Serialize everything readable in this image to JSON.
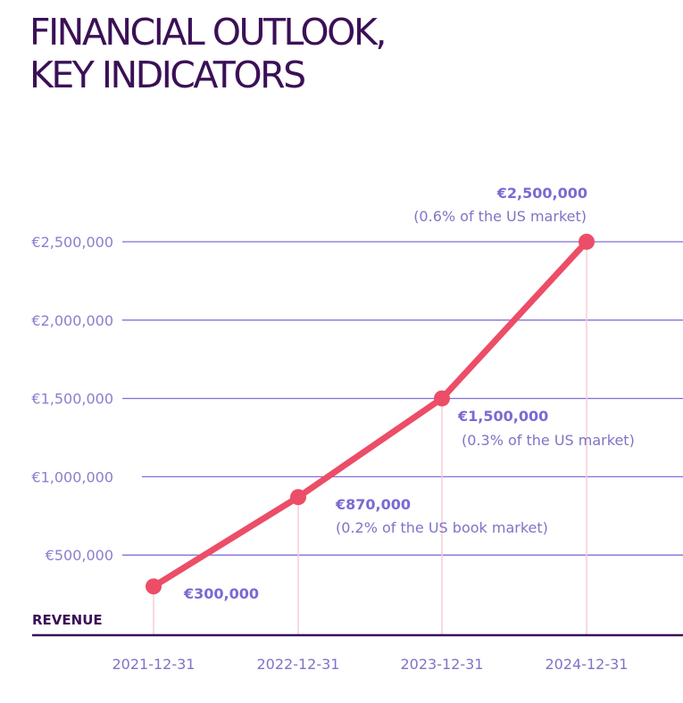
{
  "title_lines": [
    "FINANCIAL OUTLOOK,",
    "KEY INDICATORS"
  ],
  "colors": {
    "title": "#3b1056",
    "line": "#ec4d67",
    "grid": "#8070d8",
    "axis": "#3b1056",
    "dropline": "#f7cdd5",
    "label": "#7a6ad2"
  },
  "chart_data": {
    "type": "line",
    "title": "",
    "xlabel": "",
    "ylabel": "REVENUE",
    "x": [
      "2021-12-31",
      "2022-12-31",
      "2023-12-31",
      "2024-12-31"
    ],
    "series": [
      {
        "values": [
          300000,
          870000,
          1500000,
          2500000
        ]
      }
    ],
    "yticks": [
      500000,
      1000000,
      1500000,
      2000000,
      2500000
    ],
    "ytick_labels": [
      "€500,000",
      "€1,000,000",
      "€1,500,000",
      "€2,000,000",
      "€2,500,000"
    ],
    "ylim": [
      0,
      2500000
    ],
    "grid": true,
    "point_labels": [
      "€300,000",
      "€870,000",
      "€1,500,000",
      "€2,500,000"
    ],
    "point_notes": [
      "",
      "(0.2% of the US book market)",
      "(0.3% of the US market)",
      "(0.6% of the US market)"
    ]
  }
}
